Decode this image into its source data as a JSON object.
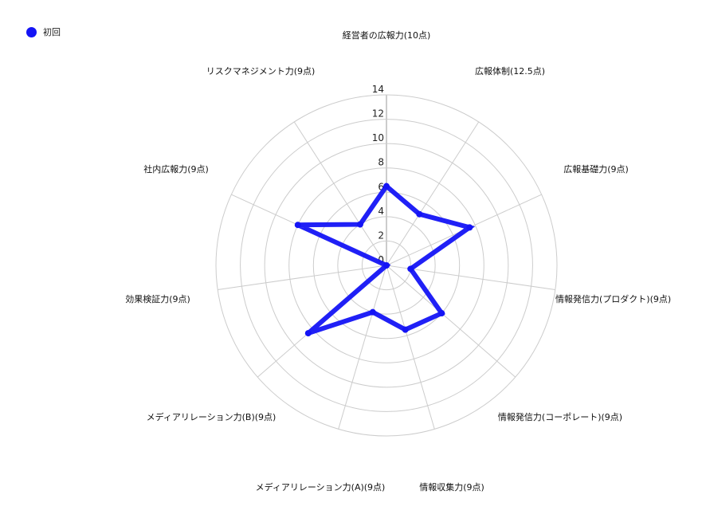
{
  "chart_data": {
    "type": "radar",
    "axes": [
      "経営者の広報力(10点)",
      "広報体制(12.5点)",
      "広報基礎力(9点)",
      "情報発信力(プロダクト)(9点)",
      "情報発信力(コーポレート)(9点)",
      "情報収集力(9点)",
      "メディアリレーション力(A)(9点)",
      "メディアリレーション力(B)(9点)",
      "効果検証力(9点)",
      "社内広報力(9点)",
      "リスクマネジメント力(9点)"
    ],
    "series": [
      {
        "name": "初回",
        "color": "#1414f5",
        "values": [
          6.5,
          5,
          7.5,
          2,
          6,
          5.5,
          4,
          8.5,
          0,
          8,
          4
        ]
      }
    ],
    "rlim": [
      0,
      14
    ],
    "ticks": [
      "0",
      "2",
      "4",
      "6",
      "8",
      "10",
      "12",
      "14"
    ],
    "grid": true,
    "grid_color": "#cccccc",
    "legend_placement": "top-left"
  }
}
